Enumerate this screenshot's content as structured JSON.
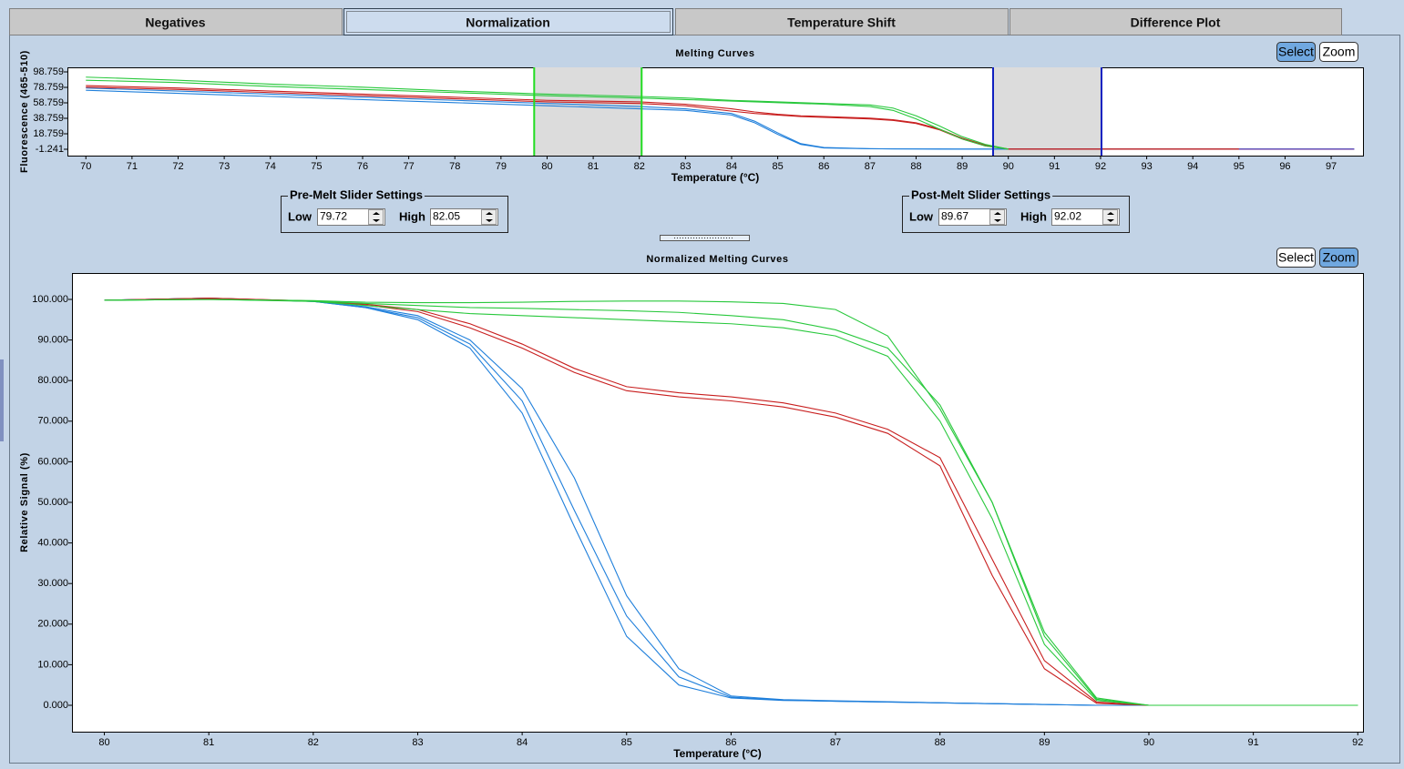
{
  "tabs": [
    "Negatives",
    "Normalization",
    "Temperature Shift",
    "Difference Plot"
  ],
  "active_tab": 1,
  "charts": [
    {
      "type": "line",
      "title": "Melting Curves",
      "xlabel": "Temperature (°C)",
      "ylabel": "Fluorescence (465-510)",
      "buttons": [
        "Select",
        "Zoom"
      ],
      "active_button": 0,
      "xlim": [
        69.6,
        97.69
      ],
      "ylim": [
        -9.48,
        104.64
      ],
      "xticks": [
        70,
        71,
        72,
        73,
        74,
        75,
        76,
        77,
        78,
        79,
        80,
        81,
        82,
        83,
        84,
        85,
        86,
        87,
        88,
        89,
        90,
        91,
        92,
        93,
        94,
        95,
        96,
        97
      ],
      "yticks": [
        98.759,
        78.759,
        58.759,
        38.759,
        18.759,
        -1.241
      ],
      "x": [
        70,
        72,
        74,
        76,
        78,
        80,
        82,
        83,
        84,
        84.5,
        85,
        85.5,
        86,
        87,
        87.5,
        88,
        88.5,
        89,
        89.5,
        90,
        92,
        95,
        97.5
      ],
      "series": [
        {
          "color": "#1f7fdb",
          "values": [
            78,
            74,
            70,
            66,
            62,
            58,
            54,
            51,
            45,
            35,
            20,
            6,
            1,
            -0.5,
            -0.7,
            -0.8,
            -0.9,
            -1,
            -1,
            -1,
            -1,
            -1,
            -1
          ]
        },
        {
          "color": "#1f7fdb",
          "values": [
            75,
            71,
            67,
            63,
            59,
            55,
            51,
            49,
            43,
            33,
            18,
            5,
            0.5,
            -0.6,
            -0.8,
            -0.9,
            -1,
            -1,
            -1,
            -1,
            -1,
            -1,
            -1
          ]
        },
        {
          "color": "#c81e1e",
          "values": [
            81,
            78,
            74,
            70,
            66,
            62,
            60,
            57,
            51,
            47,
            44,
            42,
            41,
            39,
            37,
            33,
            25,
            13,
            4,
            -1,
            -1,
            -1,
            null
          ]
        },
        {
          "color": "#c81e1e",
          "values": [
            79,
            76,
            72,
            68,
            64,
            60,
            58,
            55,
            48,
            45,
            43,
            41,
            40,
            38,
            36,
            32,
            24,
            12,
            3,
            -1,
            -1,
            -1,
            null
          ]
        },
        {
          "color": "#28c83c",
          "values": [
            92,
            88,
            83,
            79,
            74,
            70,
            67,
            65,
            62,
            61,
            60,
            59,
            58,
            56,
            52,
            42,
            29,
            15,
            5,
            -1,
            null,
            null,
            null
          ]
        },
        {
          "color": "#28c83c",
          "values": [
            88,
            85,
            80,
            76,
            72,
            68,
            65,
            63,
            61,
            60,
            59,
            58,
            57,
            54,
            49,
            38,
            25,
            12,
            3,
            -1,
            null,
            null,
            null
          ]
        },
        {
          "color": "#6a2ca0",
          "values": [
            null,
            null,
            null,
            null,
            null,
            null,
            null,
            null,
            null,
            null,
            null,
            null,
            null,
            null,
            null,
            null,
            null,
            null,
            null,
            null,
            null,
            -1.2,
            -1.2
          ]
        }
      ]
    },
    {
      "type": "line",
      "title": "Normalized Melting Curves",
      "xlabel": "Temperature (°C)",
      "ylabel": "Relative Signal (%)",
      "buttons": [
        "Select",
        "Zoom"
      ],
      "active_button": 1,
      "xlim": [
        79.69,
        92.05
      ],
      "ylim": [
        -6.5,
        106.5
      ],
      "xticks": [
        80,
        81,
        82,
        83,
        84,
        85,
        86,
        87,
        88,
        89,
        90,
        91,
        92
      ],
      "yticks": [
        {
          "value": 100,
          "label": "100.000"
        },
        {
          "value": 90,
          "label": "90.000"
        },
        {
          "value": 80,
          "label": "80.000"
        },
        {
          "value": 70,
          "label": "70.000"
        },
        {
          "value": 60,
          "label": "60.000"
        },
        {
          "value": 50,
          "label": "50.000"
        },
        {
          "value": 40,
          "label": "40.000"
        },
        {
          "value": 30,
          "label": "30.000"
        },
        {
          "value": 20,
          "label": "20.000"
        },
        {
          "value": 10,
          "label": "10.000"
        },
        {
          "value": 0,
          "label": "0.000"
        }
      ],
      "x": [
        80,
        81,
        82,
        82.5,
        83,
        83.5,
        84,
        84.5,
        85,
        85.5,
        86,
        86.5,
        87,
        87.5,
        88,
        88.5,
        89,
        89.5,
        90,
        91,
        92
      ],
      "series": [
        {
          "color": "#1f7fdb",
          "values": [
            99.8,
            100.3,
            99.5,
            98,
            95.5,
            89,
            75,
            48,
            22,
            7,
            2,
            1.3,
            1,
            0.8,
            0.6,
            0.4,
            0.2,
            0,
            0,
            0,
            0
          ]
        },
        {
          "color": "#1f7fdb",
          "values": [
            99.8,
            100.3,
            99.5,
            98,
            95,
            88,
            72,
            44,
            17,
            5,
            1.8,
            1.2,
            1,
            0.8,
            0.6,
            0.4,
            0.2,
            0,
            0,
            0,
            0
          ]
        },
        {
          "color": "#1f7fdb",
          "values": [
            99.8,
            100.3,
            99.5,
            98.2,
            96,
            90,
            78,
            56,
            27,
            9,
            2.3,
            1.4,
            1.1,
            0.9,
            0.6,
            0.4,
            0.2,
            0,
            0,
            0,
            0
          ]
        },
        {
          "color": "#c81e1e",
          "values": [
            99.8,
            100.3,
            99.6,
            98.6,
            97,
            93,
            88,
            82,
            77.5,
            76,
            75,
            73.5,
            71,
            67,
            59,
            32,
            9,
            0.5,
            0,
            0,
            0
          ]
        },
        {
          "color": "#c81e1e",
          "values": [
            99.8,
            100.3,
            99.6,
            98.8,
            97.5,
            94,
            89,
            83,
            78.5,
            77,
            76,
            74.5,
            72,
            68,
            61,
            36,
            11,
            0.8,
            0,
            0,
            0
          ]
        },
        {
          "color": "#28c83c",
          "values": [
            99.8,
            100,
            99.7,
            99.3,
            99.2,
            99.2,
            99.3,
            99.5,
            99.6,
            99.6,
            99.4,
            99,
            97.5,
            91,
            73,
            50,
            17,
            1.5,
            0,
            0,
            0
          ]
        },
        {
          "color": "#28c83c",
          "values": [
            99.8,
            100,
            99.5,
            98.5,
            97.5,
            96.5,
            96,
            95.5,
            95,
            94.5,
            94,
            93,
            91,
            86,
            70,
            46,
            15,
            1.2,
            0,
            0,
            0
          ]
        },
        {
          "color": "#28c83c",
          "values": [
            99.8,
            100,
            99.6,
            99,
            98.5,
            98,
            97.8,
            97.5,
            97.2,
            96.8,
            96,
            95,
            92.5,
            88,
            74,
            50,
            18,
            1.8,
            0,
            0,
            0
          ]
        }
      ]
    }
  ],
  "pre_melt": {
    "title": "Pre-Melt Slider Settings",
    "low_label": "Low",
    "low": 79.72,
    "high_label": "High",
    "high": 82.05,
    "color": "#22dd22"
  },
  "post_melt": {
    "title": "Post-Melt Slider Settings",
    "low_label": "Low",
    "low": 89.67,
    "high_label": "High",
    "high": 92.02,
    "color": "#1020c0"
  }
}
